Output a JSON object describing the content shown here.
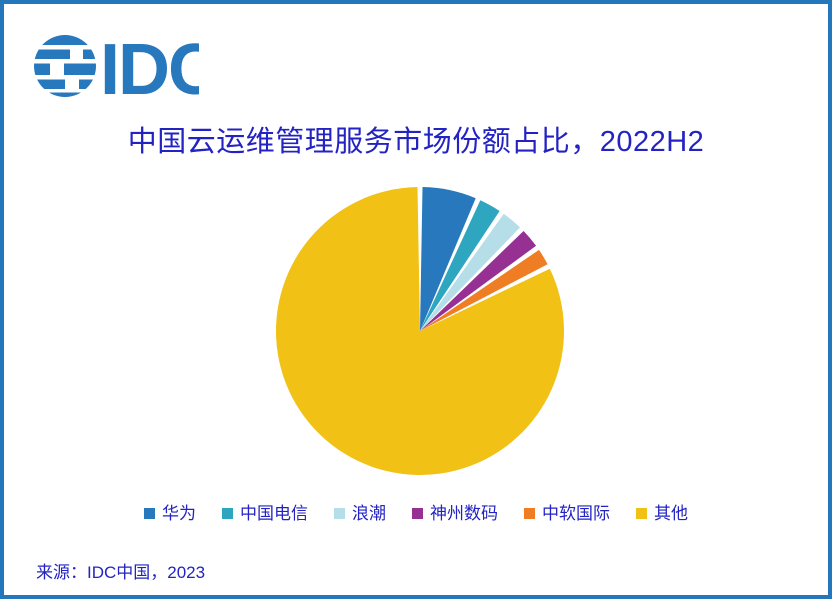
{
  "branding": {
    "logo_text": "IDC",
    "logo_color": "#2878BE"
  },
  "frame": {
    "border_color": "#2577BC",
    "background_color": "#FFFFFF",
    "text_color": "#2323C4"
  },
  "title": "中国云运维管理服务市场份额占比，2022H2",
  "source_note": "来源：IDC中国，2023",
  "chart_data": {
    "type": "pie",
    "title": "中国云运维管理服务市场份额占比，2022H2",
    "unit": "percent_market_share",
    "start_angle_deg": 0,
    "direction": "clockwise",
    "slice_gap_deg": 2,
    "legend_position": "bottom",
    "series": [
      {
        "id": "huawei",
        "label": "华为",
        "value": 6.6,
        "color": "#2778BC"
      },
      {
        "id": "china-telecom",
        "label": "中国电信",
        "value": 3.0,
        "color": "#2FA6C0"
      },
      {
        "id": "inspur",
        "label": "浪潮",
        "value": 2.9,
        "color": "#B5DEE8"
      },
      {
        "id": "digital-china",
        "label": "神州数码",
        "value": 2.7,
        "color": "#963093"
      },
      {
        "id": "chinasoft-international",
        "label": "中软国际",
        "value": 2.4,
        "color": "#EE7D23"
      },
      {
        "id": "others",
        "label": "其他",
        "value": 82.4,
        "color": "#F1C115"
      }
    ]
  }
}
